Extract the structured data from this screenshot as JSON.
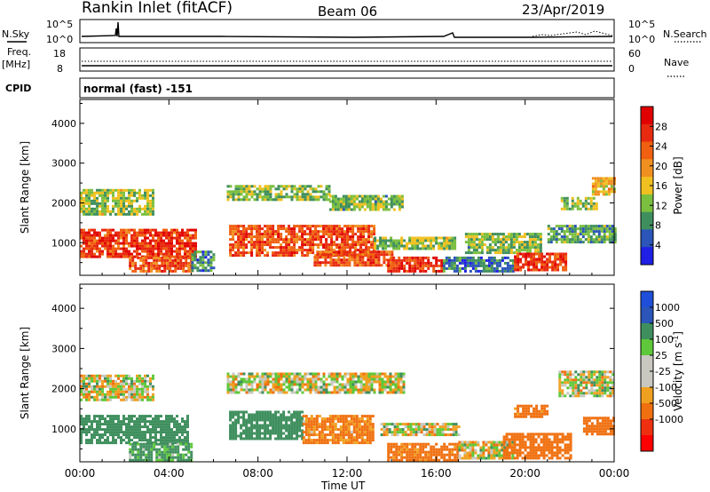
{
  "header": {
    "station": "Rankin Inlet (fitACF)",
    "beam": "Beam 06",
    "date": "23/Apr/2019"
  },
  "top_labels": {
    "nsky": "N.Sky",
    "nsearch": "N.Search",
    "freq_line1": "Freq.",
    "freq_line2": "[MHz]",
    "nave": "Nave",
    "cpid": "CPID",
    "cpid_value": "normal (fast) -151"
  },
  "strip_ticks": {
    "noise_left": [
      "10^5",
      "10^0"
    ],
    "noise_right": [
      "10^5",
      "10^0"
    ],
    "freq_left": [
      "18",
      "8"
    ],
    "nave_right": [
      "60",
      "0"
    ]
  },
  "colors": {
    "power_scale": [
      "#1f1fe6",
      "#2b55b8",
      "#3f8f5e",
      "#7bbf3f",
      "#f0c020",
      "#f09020",
      "#f06010",
      "#e82a10",
      "#e10000"
    ],
    "velocity_scale": [
      "#ff0000",
      "#ee3010",
      "#f07010",
      "#f0a020",
      "#c8c8c0",
      "#c8c8c0",
      "#5ec83a",
      "#3f8f5e",
      "#2b55b8",
      "#1f4fd8"
    ]
  },
  "chart_data": [
    {
      "type": "heatmap",
      "title": "Power",
      "ylabel": "Slant Range [km]",
      "xlabel": "Time UT",
      "x_tick_labels": [
        "00:00",
        "04:00",
        "08:00",
        "12:00",
        "16:00",
        "20:00",
        "00:00"
      ],
      "x_ticks_hours": [
        0,
        4,
        8,
        12,
        16,
        20,
        24
      ],
      "xlim_hours": [
        0,
        24
      ],
      "y_tick_values": [
        1000,
        2000,
        3000,
        4000
      ],
      "ylim": [
        180,
        4600
      ],
      "colorbar_label": "Power [dB]",
      "colorbar_ticks": [
        "28",
        "24",
        "20",
        "16",
        "12",
        "8",
        "4"
      ],
      "colorbar_range": [
        0,
        32
      ],
      "regions": [
        {
          "t0": 0.0,
          "t1": 3.3,
          "r0": 1700,
          "r1": 2350,
          "value": 13
        },
        {
          "t0": 0.0,
          "t1": 5.2,
          "r0": 650,
          "r1": 1350,
          "value": 26
        },
        {
          "t0": 2.2,
          "t1": 5.0,
          "r0": 250,
          "r1": 650,
          "value": 24
        },
        {
          "t0": 5.0,
          "t1": 6.0,
          "r0": 300,
          "r1": 800,
          "value": 8
        },
        {
          "t0": 6.6,
          "t1": 11.2,
          "r0": 2050,
          "r1": 2450,
          "value": 12
        },
        {
          "t0": 11.2,
          "t1": 14.5,
          "r0": 1850,
          "r1": 2200,
          "value": 12
        },
        {
          "t0": 6.7,
          "t1": 13.2,
          "r0": 650,
          "r1": 1450,
          "value": 25
        },
        {
          "t0": 10.5,
          "t1": 14.0,
          "r0": 400,
          "r1": 800,
          "value": 24
        },
        {
          "t0": 13.2,
          "t1": 16.8,
          "r0": 850,
          "r1": 1150,
          "value": 13
        },
        {
          "t0": 13.8,
          "t1": 16.3,
          "r0": 250,
          "r1": 650,
          "value": 27
        },
        {
          "t0": 16.3,
          "t1": 19.5,
          "r0": 300,
          "r1": 650,
          "value": 7
        },
        {
          "t0": 17.3,
          "t1": 20.7,
          "r0": 750,
          "r1": 1250,
          "value": 12
        },
        {
          "t0": 19.5,
          "t1": 21.8,
          "r0": 300,
          "r1": 750,
          "value": 26
        },
        {
          "t0": 21.6,
          "t1": 23.2,
          "r0": 1850,
          "r1": 2150,
          "value": 13
        },
        {
          "t0": 21.0,
          "t1": 24.0,
          "r0": 1000,
          "r1": 1450,
          "value": 10
        },
        {
          "t0": 23.0,
          "t1": 24.0,
          "r0": 2200,
          "r1": 2650,
          "value": 18
        }
      ]
    },
    {
      "type": "heatmap",
      "title": "Velocity",
      "ylabel": "Slant Range [km]",
      "xlabel": "Time UT",
      "x_tick_labels": [
        "00:00",
        "04:00",
        "08:00",
        "12:00",
        "16:00",
        "20:00",
        "00:00"
      ],
      "x_ticks_hours": [
        0,
        4,
        8,
        12,
        16,
        20,
        24
      ],
      "xlim_hours": [
        0,
        24
      ],
      "y_tick_values": [
        1000,
        2000,
        3000,
        4000
      ],
      "ylim": [
        180,
        4600
      ],
      "colorbar_label": "Velocity [m s-1]",
      "colorbar_ticks": [
        "1000",
        "500",
        "100",
        "25",
        "-25",
        "-100",
        "-500",
        "-1000"
      ],
      "regions": [
        {
          "t0": 0.0,
          "t1": 3.3,
          "r0": 1700,
          "r1": 2350,
          "value": 0
        },
        {
          "t0": 0.0,
          "t1": 4.8,
          "r0": 650,
          "r1": 1350,
          "value": 300
        },
        {
          "t0": 2.2,
          "t1": 5.0,
          "r0": 250,
          "r1": 650,
          "value": 150
        },
        {
          "t0": 6.6,
          "t1": 14.5,
          "r0": 1900,
          "r1": 2400,
          "value": 0
        },
        {
          "t0": 6.7,
          "t1": 10.0,
          "r0": 750,
          "r1": 1450,
          "value": 300
        },
        {
          "t0": 10.0,
          "t1": 13.2,
          "r0": 650,
          "r1": 1350,
          "value": -150
        },
        {
          "t0": 13.5,
          "t1": 17.0,
          "r0": 850,
          "r1": 1150,
          "value": 0
        },
        {
          "t0": 13.8,
          "t1": 17.0,
          "r0": 250,
          "r1": 650,
          "value": -200
        },
        {
          "t0": 17.0,
          "t1": 19.5,
          "r0": 300,
          "r1": 700,
          "value": 0
        },
        {
          "t0": 19.0,
          "t1": 22.0,
          "r0": 300,
          "r1": 900,
          "value": -300
        },
        {
          "t0": 19.5,
          "t1": 21.0,
          "r0": 1300,
          "r1": 1600,
          "value": -200
        },
        {
          "t0": 21.5,
          "t1": 24.0,
          "r0": 1850,
          "r1": 2450,
          "value": 0
        },
        {
          "t0": 22.6,
          "t1": 24.0,
          "r0": 900,
          "r1": 1300,
          "value": -300
        }
      ]
    }
  ]
}
